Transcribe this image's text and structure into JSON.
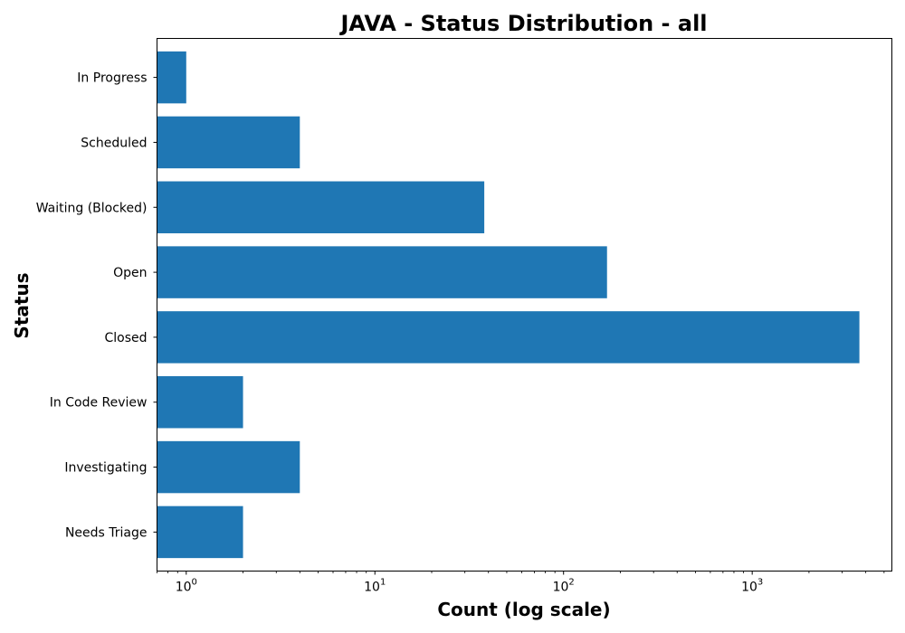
{
  "chart_data": {
    "type": "bar",
    "orientation": "horizontal",
    "title": "JAVA - Status Distribution - all",
    "xlabel": "Count (log scale)",
    "ylabel": "Status",
    "xscale": "log",
    "xlim": [
      0.7,
      5500
    ],
    "categories": [
      "Needs Triage",
      "Investigating",
      "In Code Review",
      "Closed",
      "Open",
      "Waiting (Blocked)",
      "Scheduled",
      "In Progress"
    ],
    "values": [
      2,
      4,
      2,
      3700,
      170,
      38,
      4,
      1
    ],
    "x_ticks": [
      {
        "value": 1,
        "base": "10",
        "exp": "0"
      },
      {
        "value": 10,
        "base": "10",
        "exp": "1"
      },
      {
        "value": 100,
        "base": "10",
        "exp": "2"
      },
      {
        "value": 1000,
        "base": "10",
        "exp": "3"
      }
    ],
    "bar_color": "#1f77b4",
    "grid": false,
    "legend": "none"
  }
}
